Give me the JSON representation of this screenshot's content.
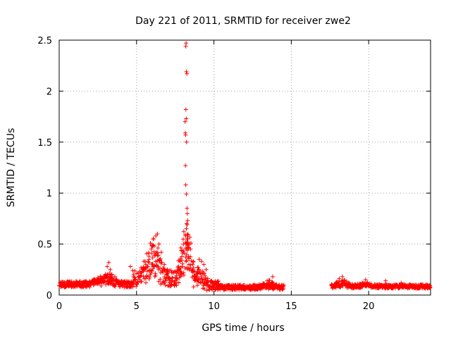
{
  "chart_data": {
    "type": "scatter",
    "title": "Day 221 of 2011, SRMTID for receiver zwe2",
    "xlabel": "GPS time / hours",
    "ylabel": "SRMTID / TECUs",
    "xlim": [
      0,
      24
    ],
    "ylim": [
      0,
      2.5
    ],
    "x_ticks": [
      0,
      5,
      10,
      15,
      20
    ],
    "x_tick_labels": [
      "0",
      "5",
      "10",
      "15",
      "20"
    ],
    "y_ticks": [
      0,
      0.5,
      1,
      1.5,
      2,
      2.5
    ],
    "y_tick_labels": [
      "0",
      "0.5",
      "1",
      "1.5",
      "2",
      "2.5"
    ],
    "grid": true,
    "marker": "plus",
    "marker_color": "#ff0000",
    "series": [
      {
        "name": "SRMTID",
        "segments": [
          {
            "x_start": 0.0,
            "x_end": 4.8,
            "base": 0.1,
            "amplitude": 0.06,
            "bumps": [
              [
                3.2,
                0.12
              ],
              [
                2.6,
                0.05
              ]
            ]
          },
          {
            "x_start": 4.8,
            "x_end": 7.6,
            "base": 0.15,
            "amplitude": 0.18,
            "bumps": [
              [
                6.2,
                0.35
              ],
              [
                5.5,
                0.12
              ]
            ]
          },
          {
            "x_start": 7.6,
            "x_end": 8.7,
            "base": 0.15,
            "amplitude": 0.15,
            "bumps": [
              [
                8.2,
                0.55
              ]
            ]
          },
          {
            "x_start": 8.7,
            "x_end": 10.3,
            "base": 0.08,
            "amplitude": 0.1,
            "bumps": [
              [
                9.1,
                0.18
              ]
            ]
          },
          {
            "x_start": 10.3,
            "x_end": 14.5,
            "base": 0.07,
            "amplitude": 0.05,
            "bumps": [
              [
                13.5,
                0.06
              ]
            ]
          },
          {
            "x_start": 17.6,
            "x_end": 24.0,
            "base": 0.08,
            "amplitude": 0.04,
            "bumps": [
              [
                18.3,
                0.07
              ],
              [
                19.8,
                0.04
              ]
            ]
          }
        ],
        "spike_points": [
          [
            8.2,
            2.47
          ],
          [
            8.18,
            2.44
          ],
          [
            8.22,
            2.19
          ],
          [
            8.25,
            2.17
          ],
          [
            8.19,
            1.82
          ],
          [
            8.21,
            1.73
          ],
          [
            8.14,
            1.7
          ],
          [
            8.15,
            1.59
          ],
          [
            8.17,
            1.57
          ],
          [
            8.23,
            1.5
          ],
          [
            8.16,
            1.27
          ],
          [
            8.18,
            1.08
          ],
          [
            8.22,
            0.99
          ],
          [
            8.26,
            0.85
          ],
          [
            8.28,
            0.8
          ],
          [
            8.3,
            0.73
          ],
          [
            8.24,
            0.7
          ],
          [
            8.27,
            0.69
          ],
          [
            8.31,
            0.55
          ],
          [
            8.26,
            0.52
          ],
          [
            8.29,
            0.5
          ],
          [
            8.33,
            0.46
          ],
          [
            8.24,
            0.4
          ],
          [
            8.35,
            0.38
          ],
          [
            8.2,
            0.33
          ],
          [
            8.38,
            0.3
          ],
          [
            8.26,
            0.27
          ],
          [
            8.4,
            0.25
          ],
          [
            6.1,
            0.55
          ],
          [
            6.25,
            0.58
          ],
          [
            6.35,
            0.6
          ],
          [
            6.05,
            0.48
          ],
          [
            5.95,
            0.45
          ],
          [
            6.45,
            0.5
          ],
          [
            5.8,
            0.38
          ],
          [
            6.6,
            0.42
          ],
          [
            5.6,
            0.3
          ],
          [
            5.4,
            0.26
          ],
          [
            6.8,
            0.3
          ],
          [
            7.0,
            0.25
          ],
          [
            3.2,
            0.32
          ],
          [
            3.1,
            0.28
          ],
          [
            3.3,
            0.25
          ],
          [
            4.6,
            0.28
          ],
          [
            4.75,
            0.24
          ],
          [
            9.05,
            0.35
          ],
          [
            9.2,
            0.33
          ],
          [
            9.35,
            0.3
          ],
          [
            8.95,
            0.27
          ],
          [
            9.5,
            0.25
          ],
          [
            13.8,
            0.18
          ],
          [
            18.3,
            0.18
          ],
          [
            18.1,
            0.16
          ],
          [
            19.8,
            0.15
          ],
          [
            21.1,
            0.14
          ],
          [
            22.1,
            0.12
          ]
        ]
      }
    ]
  }
}
